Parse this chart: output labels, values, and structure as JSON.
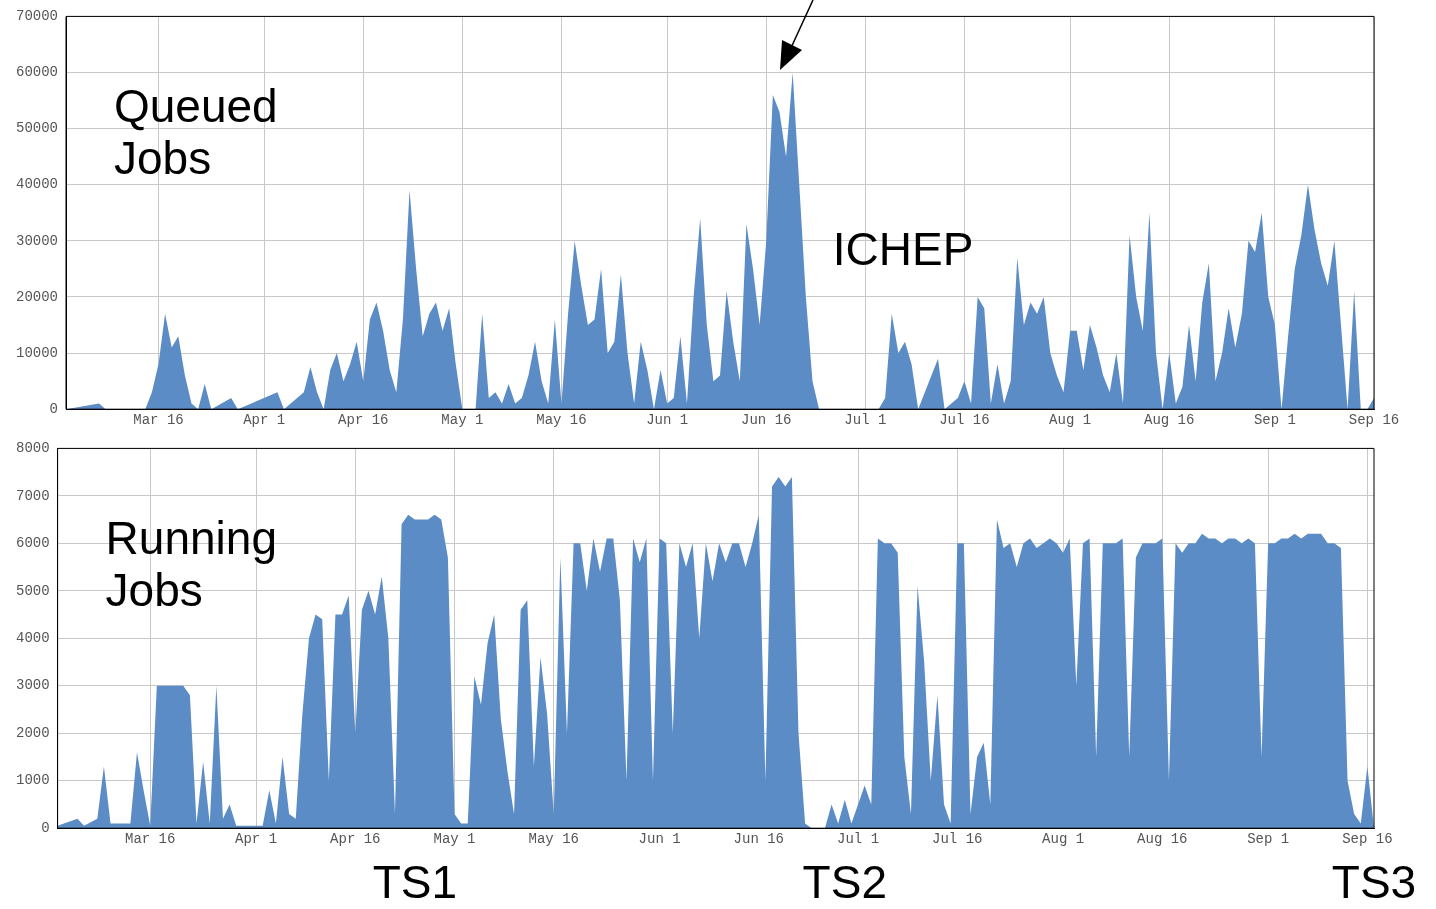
{
  "chart_data": [
    {
      "type": "area",
      "annotations": [
        "Queued Jobs",
        "ICHEP"
      ],
      "xlim": [
        "--03-02",
        "--09-16"
      ],
      "ylim": [
        0,
        70000
      ],
      "yticks": [
        0,
        10000,
        20000,
        30000,
        40000,
        50000,
        60000,
        70000
      ],
      "xticks": [
        {
          "value": "--03-16",
          "label": "Mar 16"
        },
        {
          "value": "--04-01",
          "label": "Apr 1"
        },
        {
          "value": "--04-16",
          "label": "Apr 16"
        },
        {
          "value": "--05-01",
          "label": "May 1"
        },
        {
          "value": "--05-16",
          "label": "May 16"
        },
        {
          "value": "--06-01",
          "label": "Jun 1"
        },
        {
          "value": "--06-16",
          "label": "Jun 16"
        },
        {
          "value": "--07-01",
          "label": "Jul 1"
        },
        {
          "value": "--07-16",
          "label": "Jul 16"
        },
        {
          "value": "--08-01",
          "label": "Aug 1"
        },
        {
          "value": "--08-16",
          "label": "Aug 16"
        },
        {
          "value": "--09-01",
          "label": "Sep 1"
        },
        {
          "value": "--09-16",
          "label": "Sep 16"
        }
      ],
      "grid": true,
      "series": [
        {
          "color": "#5b8cc5",
          "x": [
            "--03-02",
            "--03-07",
            "--03-08",
            "--03-14",
            "--03-15",
            "--03-16",
            "--03-17",
            "--03-18",
            "--03-19",
            "--03-20",
            "--03-21",
            "--03-22",
            "--03-23",
            "--03-24",
            "--03-27",
            "--03-28",
            "--04-03",
            "--04-04",
            "--04-07",
            "--04-08",
            "--04-09",
            "--04-10",
            "--04-11",
            "--04-12",
            "--04-13",
            "--04-14",
            "--04-15",
            "--04-16",
            "--04-17",
            "--04-18",
            "--04-19",
            "--04-20",
            "--04-21",
            "--04-22",
            "--04-23",
            "--04-24",
            "--04-25",
            "--04-26",
            "--04-27",
            "--04-28",
            "--04-29",
            "--04-30",
            "--05-01",
            "--05-03",
            "--05-04",
            "--05-05",
            "--05-06",
            "--05-07",
            "--05-08",
            "--05-09",
            "--05-10",
            "--05-11",
            "--05-12",
            "--05-13",
            "--05-14",
            "--05-15",
            "--05-16",
            "--05-17",
            "--05-18",
            "--05-19",
            "--05-20",
            "--05-21",
            "--05-22",
            "--05-23",
            "--05-24",
            "--05-25",
            "--05-26",
            "--05-27",
            "--05-28",
            "--05-29",
            "--05-30",
            "--05-31",
            "--06-01",
            "--06-02",
            "--06-03",
            "--06-04",
            "--06-05",
            "--06-06",
            "--06-07",
            "--06-08",
            "--06-09",
            "--06-10",
            "--06-11",
            "--06-12",
            "--06-13",
            "--06-14",
            "--06-15",
            "--06-16",
            "--06-17",
            "--06-18",
            "--06-19",
            "--06-20",
            "--06-21",
            "--06-22",
            "--06-23",
            "--06-24",
            "--07-03",
            "--07-04",
            "--07-05",
            "--07-06",
            "--07-07",
            "--07-08",
            "--07-09",
            "--07-12",
            "--07-13",
            "--07-15",
            "--07-16",
            "--07-17",
            "--07-18",
            "--07-19",
            "--07-20",
            "--07-21",
            "--07-22",
            "--07-23",
            "--07-24",
            "--07-25",
            "--07-26",
            "--07-27",
            "--07-28",
            "--07-29",
            "--07-30",
            "--07-31",
            "--08-01",
            "--08-02",
            "--08-03",
            "--08-04",
            "--08-05",
            "--08-06",
            "--08-07",
            "--08-08",
            "--08-09",
            "--08-10",
            "--08-11",
            "--08-12",
            "--08-13",
            "--08-14",
            "--08-15",
            "--08-16",
            "--08-17",
            "--08-18",
            "--08-19",
            "--08-20",
            "--08-21",
            "--08-22",
            "--08-23",
            "--08-24",
            "--08-25",
            "--08-26",
            "--08-27",
            "--08-28",
            "--08-29",
            "--08-30",
            "--08-31",
            "--09-01",
            "--09-02",
            "--09-03",
            "--09-04",
            "--09-05",
            "--09-06",
            "--09-07",
            "--09-08",
            "--09-09",
            "--09-10",
            "--09-11",
            "--09-12",
            "--09-13",
            "--09-14",
            "--09-15",
            "--09-16"
          ],
          "values": [
            0,
            1000,
            0,
            0,
            3000,
            8000,
            17000,
            11000,
            13000,
            6000,
            1000,
            0,
            4500,
            0,
            2000,
            0,
            3000,
            0,
            3000,
            7500,
            3000,
            0,
            7000,
            10000,
            5000,
            8000,
            12000,
            5000,
            16000,
            19000,
            14000,
            7000,
            3000,
            16000,
            39000,
            25000,
            13000,
            17000,
            19000,
            14000,
            18000,
            8000,
            0,
            0,
            17000,
            2000,
            3000,
            1000,
            4500,
            1000,
            2000,
            6000,
            12000,
            5000,
            1000,
            16000,
            1000,
            17000,
            30000,
            22000,
            15000,
            16000,
            25000,
            10000,
            12000,
            24000,
            10000,
            1000,
            12000,
            7000,
            0,
            7000,
            1000,
            2000,
            13000,
            1000,
            20000,
            34000,
            15000,
            5000,
            6000,
            21000,
            12000,
            5000,
            33000,
            25000,
            15000,
            30000,
            56000,
            53000,
            45000,
            60000,
            40000,
            20000,
            5000,
            0,
            0,
            2000,
            17000,
            10000,
            12000,
            8000,
            0,
            9000,
            0,
            2000,
            5000,
            1000,
            20000,
            18000,
            1000,
            8000,
            1000,
            5000,
            27000,
            15000,
            19000,
            17000,
            20000,
            10000,
            6000,
            3000,
            14000,
            14000,
            7000,
            15000,
            11000,
            6000,
            3000,
            10000,
            1000,
            31000,
            20000,
            14000,
            35000,
            10000,
            0,
            10000,
            1000,
            4000,
            15000,
            5000,
            19000,
            26000,
            5000,
            10000,
            18000,
            11000,
            17000,
            30000,
            28000,
            35000,
            20000,
            15000,
            0,
            13000,
            25000,
            31000,
            40000,
            32000,
            26000,
            22000,
            30000,
            15000,
            0,
            21000,
            0,
            0,
            2000
          ]
        }
      ]
    },
    {
      "type": "area",
      "annotations": [
        "Running Jobs",
        {
          "text": "TS1",
          "x": "--04-25",
          "y": 0
        },
        {
          "text": "TS2",
          "x": "--06-29",
          "y": 0
        },
        {
          "text": "TS3",
          "x": "--09-17",
          "y": 0
        }
      ],
      "xlim": [
        "--03-02",
        "--09-17"
      ],
      "ylim": [
        0,
        8000
      ],
      "yticks": [
        0,
        1000,
        2000,
        3000,
        4000,
        5000,
        6000,
        7000,
        8000
      ],
      "xticks": [
        {
          "value": "--03-16",
          "label": "Mar 16"
        },
        {
          "value": "--04-01",
          "label": "Apr 1"
        },
        {
          "value": "--04-16",
          "label": "Apr 16"
        },
        {
          "value": "--05-01",
          "label": "May 1"
        },
        {
          "value": "--05-16",
          "label": "May 16"
        },
        {
          "value": "--06-01",
          "label": "Jun 1"
        },
        {
          "value": "--06-16",
          "label": "Jun 16"
        },
        {
          "value": "--07-01",
          "label": "Jul 1"
        },
        {
          "value": "--07-16",
          "label": "Jul 16"
        },
        {
          "value": "--08-01",
          "label": "Aug 1"
        },
        {
          "value": "--08-16",
          "label": "Aug 16"
        },
        {
          "value": "--09-01",
          "label": "Sep 1"
        },
        {
          "value": "--09-16",
          "label": "Sep 16"
        }
      ],
      "grid": true,
      "series": [
        {
          "color": "#5b8cc5",
          "x": [
            "--03-02",
            "--03-05",
            "--03-06",
            "--03-08",
            "--03-09",
            "--03-10",
            "--03-13",
            "--03-14",
            "--03-15",
            "--03-16",
            "--03-17",
            "--03-18",
            "--03-19",
            "--03-20",
            "--03-21",
            "--03-22",
            "--03-23",
            "--03-24",
            "--03-25",
            "--03-26",
            "--03-27",
            "--03-28",
            "--03-29",
            "--04-02",
            "--04-03",
            "--04-04",
            "--04-05",
            "--04-06",
            "--04-07",
            "--04-08",
            "--04-09",
            "--04-10",
            "--04-11",
            "--04-12",
            "--04-13",
            "--04-14",
            "--04-15",
            "--04-16",
            "--04-17",
            "--04-18",
            "--04-19",
            "--04-20",
            "--04-21",
            "--04-22",
            "--04-23",
            "--04-24",
            "--04-25",
            "--04-26",
            "--04-27",
            "--04-28",
            "--04-29",
            "--04-30",
            "--05-01",
            "--05-02",
            "--05-03",
            "--05-04",
            "--05-05",
            "--05-06",
            "--05-07",
            "--05-08",
            "--05-09",
            "--05-10",
            "--05-11",
            "--05-12",
            "--05-13",
            "--05-14",
            "--05-15",
            "--05-16",
            "--05-17",
            "--05-18",
            "--05-19",
            "--05-20",
            "--05-21",
            "--05-22",
            "--05-23",
            "--05-24",
            "--05-25",
            "--05-26",
            "--05-27",
            "--05-28",
            "--05-29",
            "--05-30",
            "--05-31",
            "--06-01",
            "--06-02",
            "--06-03",
            "--06-04",
            "--06-05",
            "--06-06",
            "--06-07",
            "--06-08",
            "--06-09",
            "--06-10",
            "--06-11",
            "--06-12",
            "--06-13",
            "--06-14",
            "--06-15",
            "--06-16",
            "--06-17",
            "--06-18",
            "--06-19",
            "--06-20",
            "--06-21",
            "--06-22",
            "--06-23",
            "--06-24",
            "--06-26",
            "--06-27",
            "--06-28",
            "--06-29",
            "--06-30",
            "--07-02",
            "--07-03",
            "--07-04",
            "--07-05",
            "--07-06",
            "--07-07",
            "--07-08",
            "--07-09",
            "--07-10",
            "--07-11",
            "--07-12",
            "--07-13",
            "--07-14",
            "--07-15",
            "--07-16",
            "--07-17",
            "--07-18",
            "--07-19",
            "--07-20",
            "--07-21",
            "--07-22",
            "--07-23",
            "--07-24",
            "--07-25",
            "--07-26",
            "--07-27",
            "--07-28",
            "--07-29",
            "--07-30",
            "--07-31",
            "--08-01",
            "--08-02",
            "--08-03",
            "--08-04",
            "--08-05",
            "--08-06",
            "--08-07",
            "--08-08",
            "--08-09",
            "--08-10",
            "--08-11",
            "--08-12",
            "--08-13",
            "--08-14",
            "--08-15",
            "--08-16",
            "--08-17",
            "--08-18",
            "--08-19",
            "--08-20",
            "--08-21",
            "--08-22",
            "--08-23",
            "--08-24",
            "--08-25",
            "--08-26",
            "--08-27",
            "--08-28",
            "--08-29",
            "--08-30",
            "--08-31",
            "--09-01",
            "--09-02",
            "--09-03",
            "--09-04",
            "--09-05",
            "--09-06",
            "--09-07",
            "--09-08",
            "--09-09",
            "--09-10",
            "--09-11",
            "--09-12",
            "--09-13",
            "--09-14",
            "--09-15",
            "--09-16",
            "--09-17"
          ],
          "values": [
            50,
            200,
            50,
            200,
            1300,
            100,
            100,
            1600,
            800,
            50,
            3000,
            3000,
            3000,
            3000,
            3000,
            2800,
            100,
            1400,
            100,
            3000,
            200,
            500,
            50,
            50,
            800,
            100,
            1500,
            300,
            200,
            2400,
            4000,
            4500,
            4400,
            1000,
            4500,
            4500,
            4900,
            2000,
            4600,
            5000,
            4500,
            5300,
            4000,
            300,
            6400,
            6600,
            6500,
            6500,
            6500,
            6600,
            6500,
            5700,
            300,
            100,
            100,
            3200,
            2600,
            3900,
            4500,
            2300,
            1200,
            300,
            4600,
            4800,
            1300,
            3600,
            2400,
            300,
            5700,
            2000,
            6000,
            6000,
            5000,
            6100,
            5400,
            6100,
            6100,
            4800,
            1000,
            6100,
            5600,
            6100,
            1000,
            6100,
            6000,
            2000,
            6000,
            5500,
            6000,
            4000,
            6000,
            5200,
            6000,
            5600,
            6000,
            6000,
            5500,
            6000,
            6600,
            1000,
            7200,
            7400,
            7200,
            7400,
            2000,
            100,
            0,
            0,
            500,
            100,
            600,
            100,
            900,
            500,
            6100,
            6000,
            6000,
            5800,
            1500,
            300,
            5100,
            3500,
            1000,
            2800,
            500,
            100,
            6000,
            6000,
            300,
            1500,
            1800,
            500,
            6500,
            5900,
            6000,
            5500,
            6000,
            6100,
            5900,
            6000,
            6100,
            6000,
            5800,
            6100,
            3000,
            6000,
            6100,
            1500,
            6000,
            6000,
            6000,
            6100,
            1500,
            5700,
            6000,
            6000,
            6000,
            6100,
            1000,
            6000,
            5800,
            6000,
            6000,
            6200,
            6100,
            6100,
            6000,
            6100,
            6100,
            6000,
            6100,
            6000,
            1500,
            6000,
            6000,
            6100,
            6100,
            6200,
            6100,
            6200,
            6200,
            6200,
            6000,
            6000,
            5900,
            1000,
            300,
            100,
            1300,
            0
          ]
        }
      ]
    }
  ]
}
